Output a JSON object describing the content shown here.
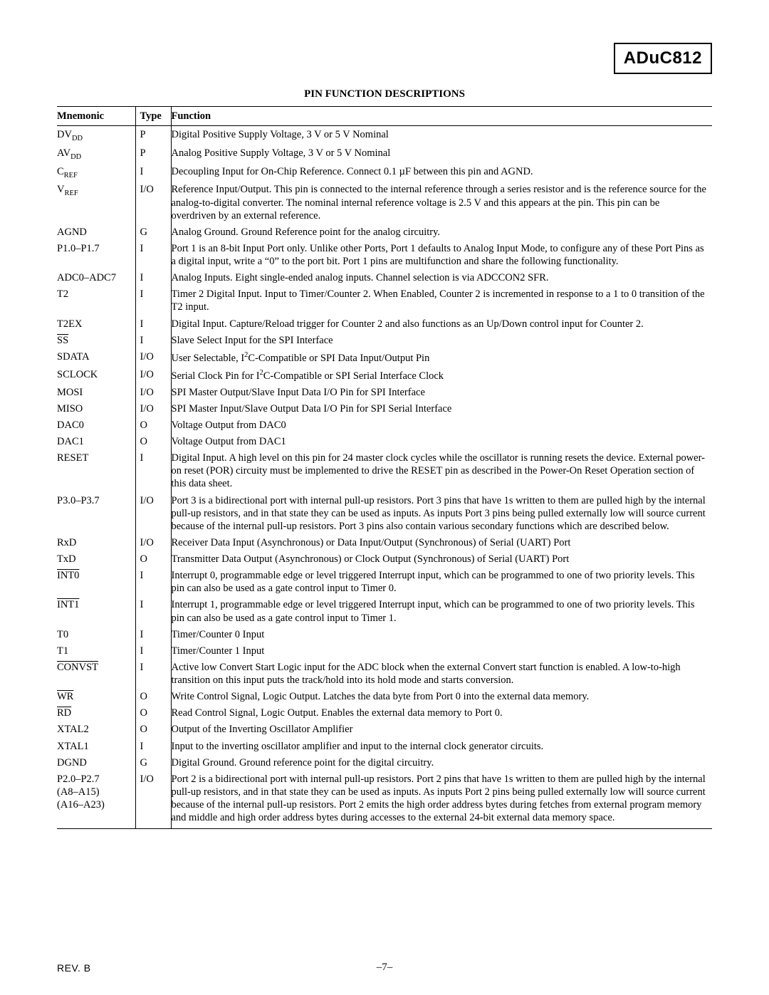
{
  "header": {
    "part_number": "ADuC812"
  },
  "section_title": "PIN FUNCTION DESCRIPTIONS",
  "table": {
    "headers": {
      "mnemonic": "Mnemonic",
      "type": "Type",
      "function": "Function"
    },
    "rows": [
      {
        "mnemonic_html": "DV<span class='sub'>DD</span>",
        "type": "P",
        "func": "Digital Positive Supply Voltage, 3 V or 5 V Nominal"
      },
      {
        "mnemonic_html": "AV<span class='sub'>DD</span>",
        "type": "P",
        "func": "Analog Positive Supply Voltage, 3 V or 5 V Nominal"
      },
      {
        "mnemonic_html": "C<span class='sub'>REF</span>",
        "type": "I",
        "func": "Decoupling Input for On-Chip Reference. Connect 0.1 µF between this pin and AGND."
      },
      {
        "mnemonic_html": "V<span class='sub'>REF</span>",
        "type": "I/O",
        "func": "Reference Input/Output. This pin is connected to the internal reference through a series resistor and is the reference source for the analog-to-digital converter. The nominal internal reference voltage is 2.5 V and this appears at the pin. This pin can be overdriven by an external reference."
      },
      {
        "mnemonic_html": "AGND",
        "type": "G",
        "func": "Analog Ground. Ground Reference point for the analog circuitry."
      },
      {
        "mnemonic_html": "P1.0–P1.7",
        "type": "I",
        "func": "Port 1 is an 8-bit Input Port only. Unlike other Ports, Port 1 defaults to Analog Input Mode, to configure any of these Port Pins as a digital input, write a “0” to the port bit. Port 1 pins are multifunction and share the following functionality."
      },
      {
        "mnemonic_html": "ADC0–ADC7",
        "type": "I",
        "func": "Analog Inputs. Eight single-ended analog inputs. Channel selection is via ADCCON2 SFR."
      },
      {
        "mnemonic_html": "T2",
        "type": "I",
        "func": "Timer 2 Digital Input. Input to Timer/Counter 2. When Enabled, Counter 2 is incremented in response to a 1 to 0 transition of the T2 input."
      },
      {
        "mnemonic_html": "T2EX",
        "type": "I",
        "func": "Digital Input. Capture/Reload trigger for Counter 2 and also functions as an Up/Down control input for Counter 2."
      },
      {
        "mnemonic_html": "<span class='overline'>SS</span>",
        "type": "I",
        "func": "Slave Select Input for the SPI Interface"
      },
      {
        "mnemonic_html": "SDATA",
        "type": "I/O",
        "func_html": "User Selectable, I<span class='sup'>2</span>C-Compatible or SPI Data Input/Output Pin"
      },
      {
        "mnemonic_html": "SCLOCK",
        "type": "I/O",
        "func_html": "Serial Clock Pin for I<span class='sup'>2</span>C-Compatible or SPI Serial Interface Clock"
      },
      {
        "mnemonic_html": "MOSI",
        "type": "I/O",
        "func": "SPI Master Output/Slave Input Data I/O Pin for SPI Interface"
      },
      {
        "mnemonic_html": "MISO",
        "type": "I/O",
        "func": "SPI Master Input/Slave Output Data I/O Pin for SPI Serial Interface"
      },
      {
        "mnemonic_html": "DAC0",
        "type": "O",
        "func": "Voltage Output from DAC0"
      },
      {
        "mnemonic_html": "DAC1",
        "type": "O",
        "func": "Voltage Output from DAC1"
      },
      {
        "mnemonic_html": "RESET",
        "type": "I",
        "func": "Digital Input. A high level on this pin for 24 master clock cycles while the oscillator is running resets the device. External power-on reset (POR) circuity must be implemented to drive the RESET pin as described in the Power-On Reset Operation section of this data sheet."
      },
      {
        "mnemonic_html": "P3.0–P3.7",
        "type": "I/O",
        "func": "Port 3 is a bidirectional port with internal pull-up resistors. Port 3 pins that have 1s written to them are pulled high by the internal pull-up resistors, and in that state they can be used as inputs. As inputs Port 3 pins being pulled externally low will source current because of the internal pull-up resistors. Port 3 pins also contain various secondary functions which are described below."
      },
      {
        "mnemonic_html": "RxD",
        "type": "I/O",
        "func": "Receiver Data Input (Asynchronous) or Data Input/Output (Synchronous) of Serial (UART) Port"
      },
      {
        "mnemonic_html": "TxD",
        "type": "O",
        "func": "Transmitter Data Output (Asynchronous) or Clock Output (Synchronous) of Serial (UART) Port"
      },
      {
        "mnemonic_html": "<span class='overline'>INT0</span>",
        "type": "I",
        "func": "Interrupt 0, programmable edge or level triggered Interrupt input, which can be programmed to one of two priority levels. This pin can also be used as a gate control input to Timer 0."
      },
      {
        "mnemonic_html": "<span class='overline'>INT1</span>",
        "type": "I",
        "func": "Interrupt 1, programmable edge or level triggered Interrupt input, which can be programmed to one of two priority levels. This pin can also be used as a gate control input to Timer 1."
      },
      {
        "mnemonic_html": "T0",
        "type": "I",
        "func": "Timer/Counter 0 Input"
      },
      {
        "mnemonic_html": "T1",
        "type": "I",
        "func": "Timer/Counter 1 Input"
      },
      {
        "mnemonic_html": "<span class='overline'>CONVST</span>",
        "type": "I",
        "func": "Active low Convert Start Logic input for the ADC block when the external Convert start function is enabled. A low-to-high transition on this input puts the track/hold into its hold mode and starts conversion."
      },
      {
        "mnemonic_html": "<span class='overline'>WR</span>",
        "type": "O",
        "func": "Write Control Signal, Logic Output. Latches the data byte from Port 0 into the external data memory."
      },
      {
        "mnemonic_html": "<span class='overline'>RD</span>",
        "type": "O",
        "func": "Read Control Signal, Logic Output. Enables the external data memory to Port 0."
      },
      {
        "mnemonic_html": "XTAL2",
        "type": "O",
        "func": "Output of the Inverting Oscillator Amplifier"
      },
      {
        "mnemonic_html": "XTAL1",
        "type": "I",
        "func": "Input to the inverting oscillator amplifier and input to the internal clock generator circuits."
      },
      {
        "mnemonic_html": "DGND",
        "type": "G",
        "func": "Digital Ground. Ground reference point for the digital circuitry."
      },
      {
        "mnemonic_html": "P2.0–P2.7<br>(A8–A15)<br>(A16–A23)",
        "type": "I/O",
        "func": "Port 2 is a bidirectional port with internal pull-up resistors. Port 2 pins that have 1s written to them are pulled high by the internal pull-up resistors, and in that state they can be used as inputs. As inputs Port 2 pins being pulled externally low will source current because of the internal pull-up resistors. Port 2 emits the high order address bytes during fetches from external program memory and middle and high order address bytes during accesses to the external 24-bit external data memory space."
      }
    ]
  },
  "footer": {
    "rev": "REV. B",
    "page": "–7–"
  }
}
